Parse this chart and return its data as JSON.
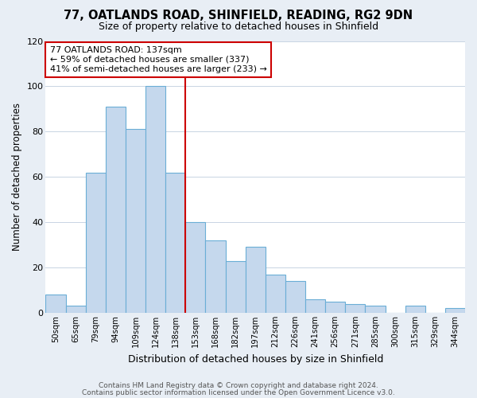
{
  "title1": "77, OATLANDS ROAD, SHINFIELD, READING, RG2 9DN",
  "title2": "Size of property relative to detached houses in Shinfield",
  "xlabel": "Distribution of detached houses by size in Shinfield",
  "ylabel": "Number of detached properties",
  "bar_labels": [
    "50sqm",
    "65sqm",
    "79sqm",
    "94sqm",
    "109sqm",
    "124sqm",
    "138sqm",
    "153sqm",
    "168sqm",
    "182sqm",
    "197sqm",
    "212sqm",
    "226sqm",
    "241sqm",
    "256sqm",
    "271sqm",
    "285sqm",
    "300sqm",
    "315sqm",
    "329sqm",
    "344sqm"
  ],
  "bar_heights": [
    8,
    3,
    62,
    91,
    81,
    100,
    62,
    40,
    32,
    23,
    29,
    17,
    14,
    6,
    5,
    4,
    3,
    0,
    3,
    0,
    2
  ],
  "bar_color": "#c5d8ed",
  "bar_edge_color": "#6aaed6",
  "bar_edge_width": 0.8,
  "vline_color": "#cc0000",
  "vline_label_index": 6,
  "annotation_text": "77 OATLANDS ROAD: 137sqm\n← 59% of detached houses are smaller (337)\n41% of semi-detached houses are larger (233) →",
  "annotation_box_color": "#ffffff",
  "annotation_box_edge_color": "#cc0000",
  "ylim": [
    0,
    120
  ],
  "yticks": [
    0,
    20,
    40,
    60,
    80,
    100,
    120
  ],
  "bg_color": "#e8eef5",
  "plot_bg_color": "#ffffff",
  "grid_color": "#c8d4e3",
  "footer1": "Contains HM Land Registry data © Crown copyright and database right 2024.",
  "footer2": "Contains public sector information licensed under the Open Government Licence v3.0."
}
